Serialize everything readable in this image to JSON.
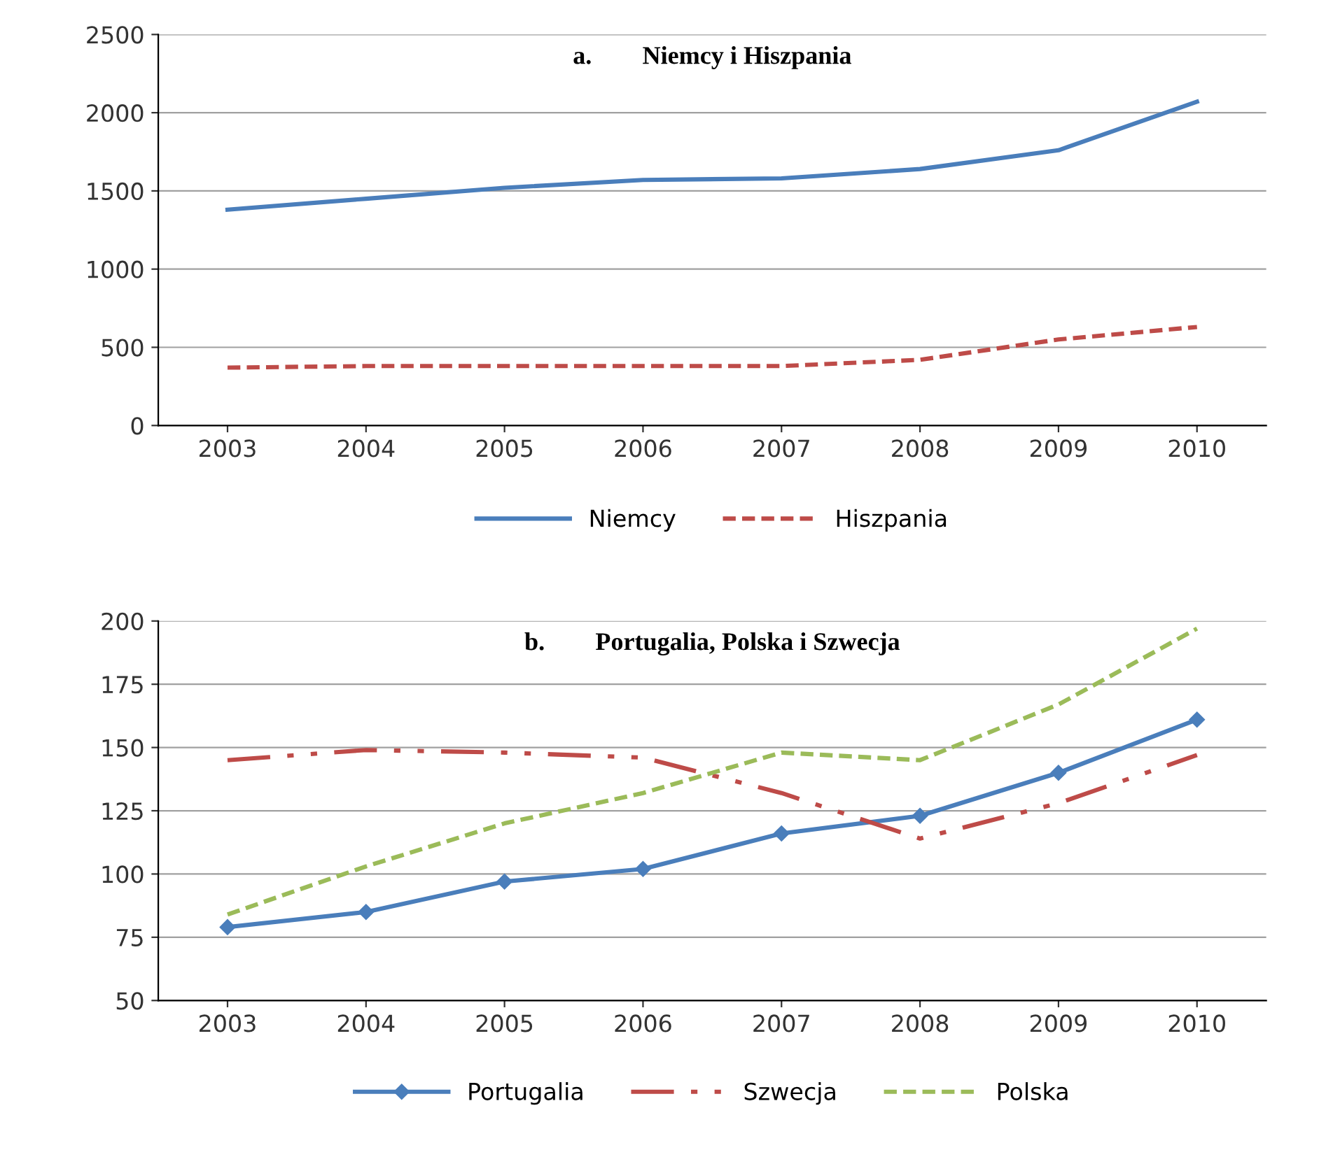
{
  "chart_data": [
    {
      "type": "line",
      "title": "a.        Niemcy i Hiszpania",
      "categories": [
        "2003",
        "2004",
        "2005",
        "2006",
        "2007",
        "2008",
        "2009",
        "2010"
      ],
      "ylim": [
        0,
        2500
      ],
      "yticks": [
        0,
        500,
        1000,
        1500,
        2000,
        2500
      ],
      "grid": "y",
      "legend": "bottom",
      "series": [
        {
          "name": "Niemcy",
          "color": "#4a7ebb",
          "line_style": "solid",
          "marker": "none",
          "values": [
            1380,
            1450,
            1520,
            1570,
            1580,
            1640,
            1760,
            2070
          ]
        },
        {
          "name": "Hiszpania",
          "color": "#be4b48",
          "line_style": "dashed",
          "marker": "none",
          "values": [
            370,
            380,
            380,
            380,
            380,
            420,
            550,
            630
          ]
        }
      ]
    },
    {
      "type": "line",
      "title": "b.        Portugalia, Polska i Szwecja",
      "categories": [
        "2003",
        "2004",
        "2005",
        "2006",
        "2007",
        "2008",
        "2009",
        "2010"
      ],
      "ylim": [
        50,
        200
      ],
      "yticks": [
        50,
        75,
        100,
        125,
        150,
        175,
        200
      ],
      "grid": "y",
      "legend": "bottom",
      "series": [
        {
          "name": "Portugalia",
          "color": "#4a7ebb",
          "line_style": "solid",
          "marker": "diamond",
          "values": [
            79,
            85,
            97,
            102,
            116,
            123,
            140,
            161
          ]
        },
        {
          "name": "Szwecja",
          "color": "#be4b48",
          "line_style": "dashdot",
          "marker": "none",
          "values": [
            145,
            149,
            148,
            146,
            132,
            114,
            128,
            147
          ]
        },
        {
          "name": "Polska",
          "color": "#9bbb59",
          "line_style": "dashed",
          "marker": "none",
          "values": [
            84,
            103,
            120,
            132,
            148,
            145,
            167,
            197
          ]
        }
      ]
    }
  ]
}
